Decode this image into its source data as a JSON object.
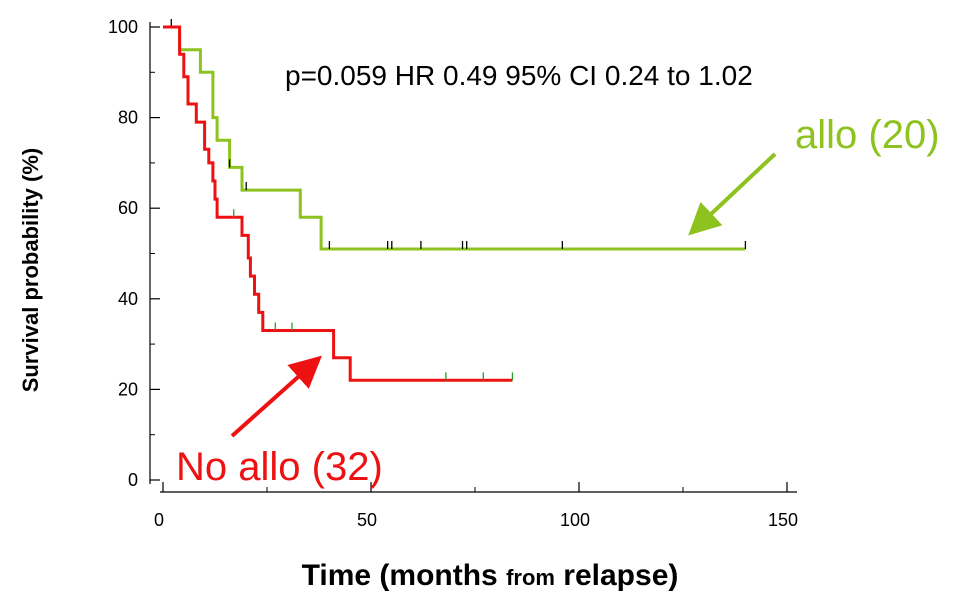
{
  "chart_data": {
    "type": "line",
    "subtype": "kaplan-meier-step",
    "ylabel": "Survival probability (%)",
    "xlabel": {
      "part1": "Time (months ",
      "part2": "from",
      "part3": " relapse)"
    },
    "xlim": [
      0,
      150
    ],
    "ylim": [
      0,
      100
    ],
    "x_ticks": [
      0,
      50,
      100,
      150
    ],
    "x_tick_labels": [
      "0",
      "50",
      "100",
      "150"
    ],
    "y_ticks": [
      0,
      20,
      40,
      60,
      80,
      100
    ],
    "y_tick_labels": [
      "0",
      "20",
      "40",
      "60",
      "80",
      "100"
    ],
    "annotation": "p=0.059 HR 0.49 95% CI 0.24 to 1.02",
    "series": [
      {
        "name": "allo (20)",
        "color": "#8dc21f",
        "tick_color": "#000000",
        "steps": [
          [
            0,
            100
          ],
          [
            4,
            100
          ],
          [
            4,
            95
          ],
          [
            9,
            95
          ],
          [
            9,
            90
          ],
          [
            12,
            90
          ],
          [
            12,
            80
          ],
          [
            13,
            80
          ],
          [
            13,
            75
          ],
          [
            16,
            75
          ],
          [
            16,
            69
          ],
          [
            19,
            69
          ],
          [
            19,
            64
          ],
          [
            33,
            64
          ],
          [
            33,
            58
          ],
          [
            38,
            58
          ],
          [
            38,
            51
          ],
          [
            140,
            51
          ]
        ],
        "censor_x": [
          2,
          16,
          20,
          40,
          54,
          55,
          62,
          72,
          73,
          96,
          140
        ]
      },
      {
        "name": "No allo (32)",
        "color": "#ee1111",
        "tick_color": "#2a9d2a",
        "steps": [
          [
            0,
            100
          ],
          [
            4,
            100
          ],
          [
            4,
            94
          ],
          [
            5,
            94
          ],
          [
            5,
            89
          ],
          [
            6,
            89
          ],
          [
            6,
            83
          ],
          [
            8,
            83
          ],
          [
            8,
            79
          ],
          [
            10,
            79
          ],
          [
            10,
            73
          ],
          [
            11,
            73
          ],
          [
            11,
            70
          ],
          [
            12,
            70
          ],
          [
            12,
            66
          ],
          [
            12.5,
            66
          ],
          [
            12.5,
            62
          ],
          [
            13,
            62
          ],
          [
            13,
            58
          ],
          [
            19,
            58
          ],
          [
            19,
            54
          ],
          [
            20.5,
            54
          ],
          [
            20.5,
            49
          ],
          [
            21,
            49
          ],
          [
            21,
            45
          ],
          [
            22,
            45
          ],
          [
            22,
            41
          ],
          [
            23,
            41
          ],
          [
            23,
            37
          ],
          [
            24,
            37
          ],
          [
            24,
            33
          ],
          [
            41,
            33
          ],
          [
            41,
            27
          ],
          [
            45,
            27
          ],
          [
            45,
            22
          ],
          [
            84,
            22
          ]
        ],
        "censor_x": [
          17,
          27,
          31,
          68,
          77,
          84
        ]
      }
    ]
  },
  "labels": {
    "allo": "allo (20)",
    "no_allo": "No allo (32)"
  }
}
